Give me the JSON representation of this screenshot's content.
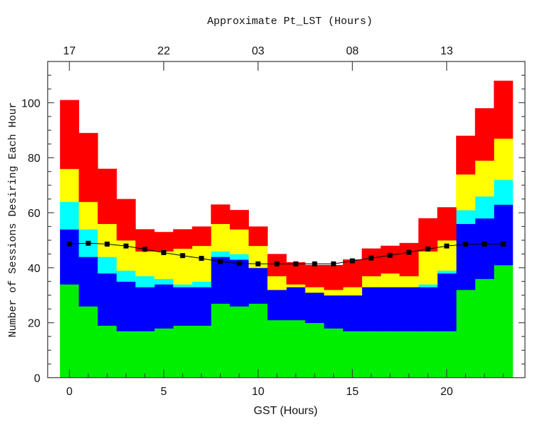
{
  "chart_data": {
    "type": "bar",
    "stacked": true,
    "title": "",
    "xlabel": "GST (Hours)",
    "ylabel": "Number of Sessions Desiring Each Hour",
    "top_axis_label": "Approximate Pt_LST (Hours)",
    "xlim": [
      -1.15,
      24.15
    ],
    "ylim": [
      0,
      115
    ],
    "grid": false,
    "x": [
      0,
      1,
      2,
      3,
      4,
      5,
      6,
      7,
      8,
      9,
      10,
      11,
      12,
      13,
      14,
      15,
      16,
      17,
      18,
      19,
      20,
      21,
      22,
      23
    ],
    "x_ticks": [
      0,
      5,
      10,
      15,
      20
    ],
    "x_tick_labels": [
      "0",
      "5",
      "10",
      "15",
      "20"
    ],
    "top_ticks": [
      0,
      5,
      10,
      15,
      20
    ],
    "top_tick_labels": [
      "17",
      "22",
      "03",
      "08",
      "13"
    ],
    "y_ticks": [
      0,
      20,
      40,
      60,
      80,
      100
    ],
    "y_tick_labels": [
      "0",
      "20",
      "40",
      "60",
      "80",
      "100"
    ],
    "series": [
      {
        "color": "#00ee00",
        "values": [
          34,
          26,
          19,
          17,
          17,
          18,
          19,
          19,
          27,
          26,
          27,
          21,
          21,
          20,
          18,
          17,
          17,
          17,
          17,
          17,
          17,
          32,
          36,
          41
        ]
      },
      {
        "color": "#0000ff",
        "values": [
          20,
          18,
          19,
          18,
          16,
          16,
          14,
          14,
          17,
          17,
          13,
          11,
          12,
          11,
          12,
          13,
          16,
          16,
          16,
          16,
          21,
          24,
          22,
          22
        ]
      },
      {
        "color": "#00ffff",
        "values": [
          10,
          10,
          6,
          4,
          4,
          2,
          1,
          2,
          2,
          2,
          0,
          0,
          0,
          0,
          0,
          0,
          0,
          0,
          0,
          1,
          1,
          5,
          8,
          9
        ]
      },
      {
        "color": "#ffff00",
        "values": [
          12,
          10,
          12,
          11,
          9,
          10,
          13,
          13,
          10,
          9,
          8,
          5,
          1,
          2,
          2,
          3,
          4,
          5,
          4,
          12,
          11,
          13,
          13,
          15
        ]
      },
      {
        "color": "#ff0000",
        "values": [
          25,
          25,
          20,
          15,
          8,
          7,
          7,
          7,
          7,
          7,
          7,
          8,
          8,
          8,
          9,
          10,
          10,
          10,
          12,
          12,
          12,
          14,
          19,
          21
        ]
      }
    ],
    "line": {
      "type": "line",
      "marker": "square",
      "color": "#000000",
      "values": [
        48.7,
        48.9,
        48.6,
        47.9,
        46.7,
        45.5,
        44.4,
        43.4,
        42.2,
        41.6,
        41.4,
        41.4,
        41.4,
        41.4,
        41.4,
        42.5,
        43.5,
        44.5,
        45.6,
        46.8,
        47.9,
        48.5,
        48.6,
        48.6
      ]
    }
  }
}
